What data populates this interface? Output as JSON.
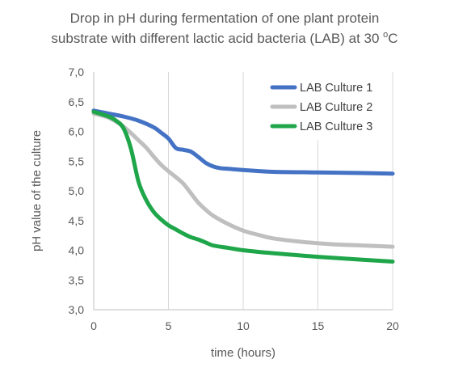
{
  "chart_data": {
    "type": "line",
    "title_lines": [
      "Drop in pH during fermentation of one plant protein",
      "substrate with different lactic acid bacteria (LAB) at 30 °C"
    ],
    "title_main": "substrate with different lactic acid bacteria (LAB) at 30 ",
    "title_degree": "o",
    "title_unit": "C",
    "xlabel": "time (hours)",
    "ylabel": "pH value of the culture",
    "xlim": [
      0,
      20
    ],
    "ylim": [
      3.0,
      7.0
    ],
    "xticks": [
      0,
      5,
      10,
      15,
      20
    ],
    "xtick_labels": [
      "0",
      "5",
      "10",
      "15",
      "20"
    ],
    "yticks": [
      3.0,
      3.5,
      4.0,
      4.5,
      5.0,
      5.5,
      6.0,
      6.5,
      7.0
    ],
    "ytick_labels": [
      "3,0",
      "3,5",
      "4,0",
      "4,5",
      "5,0",
      "5,5",
      "6,0",
      "6,5",
      "7,0"
    ],
    "grid": "vertical",
    "legend_position": "top-right",
    "series": [
      {
        "name": "LAB Culture 1",
        "color": "#4472c4",
        "x": [
          0,
          1,
          2,
          3,
          4,
          4.5,
          5,
          5.5,
          6,
          6.5,
          7,
          7.5,
          8,
          8.5,
          9,
          10,
          12,
          15,
          18,
          20
        ],
        "y": [
          6.35,
          6.3,
          6.25,
          6.18,
          6.07,
          5.98,
          5.88,
          5.72,
          5.69,
          5.66,
          5.57,
          5.47,
          5.41,
          5.38,
          5.37,
          5.35,
          5.32,
          5.31,
          5.3,
          5.29
        ]
      },
      {
        "name": "LAB Culture 2",
        "color": "#bfbfbf",
        "x": [
          0,
          1,
          2,
          3,
          3.5,
          4,
          4.5,
          5,
          5.5,
          6,
          6.5,
          7,
          7.5,
          8,
          9,
          10,
          11,
          12,
          14,
          16,
          18,
          20
        ],
        "y": [
          6.3,
          6.23,
          6.08,
          5.85,
          5.73,
          5.58,
          5.44,
          5.33,
          5.23,
          5.12,
          4.96,
          4.8,
          4.68,
          4.58,
          4.44,
          4.33,
          4.26,
          4.2,
          4.14,
          4.1,
          4.08,
          4.06
        ]
      },
      {
        "name": "LAB Culture 3",
        "color": "#1fa64a",
        "x": [
          0,
          1,
          1.5,
          2,
          2.5,
          3,
          3.5,
          4,
          4.5,
          5,
          5.5,
          6,
          6.5,
          7,
          7.5,
          8,
          9,
          10,
          12,
          15,
          18,
          20
        ],
        "y": [
          6.33,
          6.25,
          6.18,
          6.05,
          5.7,
          5.15,
          4.85,
          4.65,
          4.52,
          4.42,
          4.35,
          4.28,
          4.22,
          4.18,
          4.13,
          4.08,
          4.04,
          4.0,
          3.95,
          3.89,
          3.84,
          3.81
        ]
      }
    ]
  }
}
